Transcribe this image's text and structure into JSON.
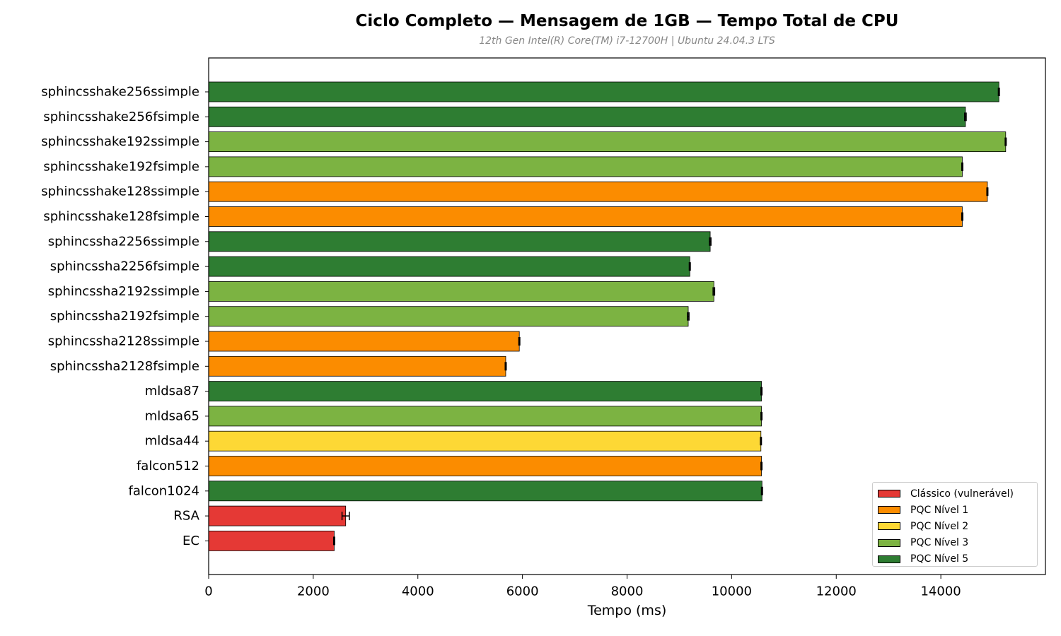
{
  "title": "Ciclo Completo — Mensagem de 1GB — Tempo Total de CPU",
  "subtitle": "12th Gen Intel(R) Core(TM) i7-12700H | Ubuntu 24.04.3 LTS",
  "colors": {
    "classico": "#e53935",
    "nivel1": "#fb8c00",
    "nivel2": "#fdd835",
    "nivel3": "#7cb342",
    "nivel5": "#2e7d32"
  },
  "legend": [
    {
      "label": "Clássico (vulnerável)",
      "color": "#e53935"
    },
    {
      "label": "PQC Nível 1",
      "color": "#fb8c00"
    },
    {
      "label": "PQC Nível 2",
      "color": "#fdd835"
    },
    {
      "label": "PQC Nível 3",
      "color": "#7cb342"
    },
    {
      "label": "PQC Nível 5",
      "color": "#2e7d32"
    }
  ],
  "chart_data": {
    "type": "bar",
    "orientation": "horizontal",
    "title": "Ciclo Completo — Mensagem de 1GB — Tempo Total de CPU",
    "subtitle": "12th Gen Intel(R) Core(TM) i7-12700H | Ubuntu 24.04.3 LTS",
    "xlabel": "Tempo (ms)",
    "ylabel": "",
    "xlim": [
      0,
      16000
    ],
    "xticks": [
      0,
      2000,
      4000,
      6000,
      8000,
      10000,
      12000,
      14000
    ],
    "grid": false,
    "legend_position": "bottom-right",
    "categories": [
      "sphincsshake256ssimple",
      "sphincsshake256fsimple",
      "sphincsshake192ssimple",
      "sphincsshake192fsimple",
      "sphincsshake128ssimple",
      "sphincsshake128fsimple",
      "sphincssha2256ssimple",
      "sphincssha2256fsimple",
      "sphincssha2192ssimple",
      "sphincssha2192fsimple",
      "sphincssha2128ssimple",
      "sphincssha2128fsimple",
      "mldsa87",
      "mldsa65",
      "mldsa44",
      "falcon512",
      "falcon1024",
      "RSA",
      "EC"
    ],
    "values": [
      15110,
      14470,
      15240,
      14410,
      14890,
      14410,
      9590,
      9200,
      9660,
      9170,
      5940,
      5680,
      10570,
      10570,
      10560,
      10570,
      10580,
      2620,
      2400
    ],
    "errors": [
      10,
      15,
      10,
      10,
      10,
      10,
      15,
      10,
      15,
      15,
      10,
      10,
      10,
      10,
      10,
      10,
      10,
      70,
      10
    ],
    "groups": [
      "PQC Nível 5",
      "PQC Nível 5",
      "PQC Nível 3",
      "PQC Nível 3",
      "PQC Nível 1",
      "PQC Nível 1",
      "PQC Nível 5",
      "PQC Nível 5",
      "PQC Nível 3",
      "PQC Nível 3",
      "PQC Nível 1",
      "PQC Nível 1",
      "PQC Nível 5",
      "PQC Nível 3",
      "PQC Nível 2",
      "PQC Nível 1",
      "PQC Nível 5",
      "Clássico (vulnerável)",
      "Clássico (vulnerável)"
    ]
  }
}
